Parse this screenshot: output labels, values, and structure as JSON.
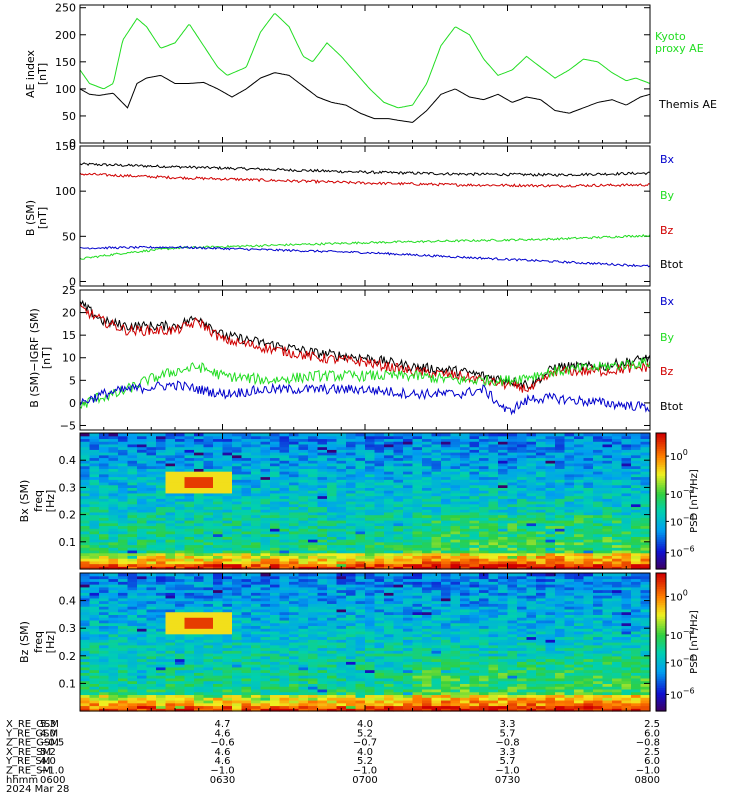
{
  "colors": {
    "black": "#000000",
    "red": "#d00000",
    "green": "#22dd22",
    "blue": "#0000cc"
  },
  "chart_data": [
    {
      "type": "line",
      "panel": "ae",
      "ylabel": "AE index",
      "yunit": "[nT]",
      "ylim": [
        0,
        250
      ],
      "yticks": [
        "0",
        "50",
        "100",
        "150",
        "200",
        "250"
      ],
      "xlim_minutes_after_0600": [
        0,
        120
      ],
      "legend": [
        {
          "name": "Kyoto proxy AE",
          "lines": [
            "Kyoto",
            "proxy AE"
          ],
          "color": "#22dd22"
        },
        {
          "name": "Themis AE",
          "lines": [
            "Themis AE"
          ],
          "color": "#000000"
        }
      ],
      "series": [
        {
          "name": "Kyoto proxy AE",
          "color": "#22dd22",
          "x": [
            0,
            2,
            5,
            7,
            9,
            12,
            14,
            17,
            20,
            23,
            26,
            29,
            31,
            35,
            38,
            41,
            44,
            47,
            49,
            52,
            55,
            58,
            61,
            64,
            67,
            70,
            73,
            76,
            79,
            82,
            85,
            88,
            91,
            94,
            97,
            100,
            103,
            106,
            109,
            112,
            115,
            117,
            120
          ],
          "y": [
            135,
            110,
            100,
            110,
            190,
            230,
            215,
            175,
            185,
            220,
            180,
            140,
            125,
            140,
            205,
            240,
            215,
            160,
            150,
            185,
            160,
            130,
            100,
            75,
            65,
            70,
            110,
            180,
            215,
            200,
            155,
            125,
            135,
            160,
            140,
            120,
            135,
            155,
            150,
            130,
            115,
            120,
            110
          ]
        },
        {
          "name": "Themis AE",
          "color": "#000000",
          "x": [
            0,
            2,
            4,
            7,
            10,
            12,
            14,
            17,
            20,
            23,
            26,
            29,
            32,
            35,
            38,
            41,
            44,
            47,
            50,
            53,
            56,
            59,
            62,
            65,
            67,
            70,
            73,
            76,
            79,
            82,
            85,
            88,
            91,
            94,
            97,
            100,
            103,
            106,
            109,
            112,
            115,
            118,
            120
          ],
          "y": [
            100,
            90,
            88,
            92,
            65,
            110,
            120,
            125,
            110,
            110,
            112,
            100,
            85,
            100,
            120,
            130,
            125,
            105,
            85,
            75,
            70,
            55,
            45,
            45,
            42,
            38,
            60,
            90,
            100,
            85,
            80,
            90,
            75,
            85,
            80,
            60,
            55,
            65,
            75,
            80,
            70,
            85,
            90
          ]
        }
      ]
    },
    {
      "type": "line",
      "panel": "b_sm",
      "ylabel": "B (SM)",
      "yunit": "[nT]",
      "ylim": [
        0,
        150
      ],
      "yticks": [
        "0",
        "50",
        "100",
        "150"
      ],
      "legend": [
        {
          "name": "Bx",
          "color": "#0000cc"
        },
        {
          "name": "By",
          "color": "#22dd22"
        },
        {
          "name": "Bz",
          "color": "#d00000"
        },
        {
          "name": "Btot",
          "color": "#000000"
        }
      ],
      "series": [
        {
          "name": "Btot",
          "color": "#000000",
          "x": [
            0,
            20,
            40,
            60,
            80,
            100,
            120
          ],
          "y": [
            130,
            127,
            124,
            121,
            119,
            118,
            120
          ],
          "noise": 1.5
        },
        {
          "name": "Bz",
          "color": "#d00000",
          "x": [
            0,
            20,
            40,
            60,
            80,
            100,
            120
          ],
          "y": [
            119,
            115,
            112,
            109,
            107,
            106,
            107
          ],
          "noise": 1.5
        },
        {
          "name": "By",
          "color": "#22dd22",
          "x": [
            0,
            10,
            20,
            40,
            60,
            80,
            100,
            120
          ],
          "y": [
            25,
            32,
            37,
            40,
            43,
            45,
            47,
            51
          ],
          "noise": 1.2
        },
        {
          "name": "Bx",
          "color": "#0000cc",
          "x": [
            0,
            20,
            40,
            60,
            80,
            100,
            120
          ],
          "y": [
            37,
            38,
            35,
            32,
            27,
            22,
            17
          ],
          "noise": 1.2
        }
      ]
    },
    {
      "type": "line",
      "panel": "b_minus_igrf",
      "ylabel": "B (SM)−IGRF (SM)",
      "yunit": "[nT]",
      "ylim": [
        -5,
        25
      ],
      "yticks": [
        "−5",
        "0",
        "5",
        "10",
        "15",
        "20",
        "25"
      ],
      "legend": [
        {
          "name": "Bx",
          "color": "#0000cc"
        },
        {
          "name": "By",
          "color": "#22dd22"
        },
        {
          "name": "Bz",
          "color": "#d00000"
        },
        {
          "name": "Btot",
          "color": "#000000"
        }
      ],
      "series": [
        {
          "name": "Btot",
          "color": "#000000",
          "x": [
            0,
            5,
            10,
            20,
            25,
            30,
            40,
            50,
            60,
            70,
            80,
            90,
            95,
            100,
            110,
            120
          ],
          "y": [
            22,
            18,
            17,
            17,
            19,
            15,
            13,
            11,
            10,
            8,
            7,
            5,
            4,
            8,
            8,
            10
          ],
          "noise": 1.1
        },
        {
          "name": "Bz",
          "color": "#d00000",
          "x": [
            0,
            5,
            10,
            20,
            25,
            30,
            40,
            50,
            60,
            70,
            80,
            90,
            95,
            100,
            110,
            120
          ],
          "y": [
            21,
            18,
            16,
            16,
            18,
            14,
            12,
            10,
            9,
            7,
            6,
            4,
            3,
            7,
            7,
            8
          ],
          "noise": 1.1
        },
        {
          "name": "By",
          "color": "#22dd22",
          "x": [
            0,
            3,
            8,
            14,
            20,
            25,
            30,
            40,
            50,
            60,
            70,
            80,
            90,
            95,
            100,
            110,
            120
          ],
          "y": [
            -1,
            1,
            2,
            5,
            7,
            8,
            6,
            5,
            6,
            6,
            6,
            5,
            5,
            6,
            7,
            8,
            9
          ],
          "noise": 1.2
        },
        {
          "name": "Bx",
          "color": "#0000cc",
          "x": [
            0,
            5,
            10,
            20,
            25,
            30,
            40,
            50,
            60,
            70,
            80,
            85,
            90,
            95,
            100,
            110,
            120
          ],
          "y": [
            0,
            2,
            3,
            4,
            3,
            2,
            3,
            3,
            3,
            2,
            2,
            3,
            -2,
            1,
            1,
            0,
            -1
          ],
          "noise": 1.1
        }
      ]
    },
    {
      "type": "heatmap",
      "panel": "bx_psd",
      "ylabel": "Bx (SM)",
      "ylabel2": "freq",
      "yunit": "[Hz]",
      "ylim": [
        0,
        0.5
      ],
      "yticks": [
        "0.1",
        "0.2",
        "0.3",
        "0.4"
      ],
      "colorbar_label": "PSD [nT²/Hz]",
      "colorbar_ticks": [
        {
          "base": "10",
          "exp": "0"
        },
        {
          "base": "10",
          "exp": "−2"
        },
        {
          "base": "10",
          "exp": "−4"
        },
        {
          "base": "10",
          "exp": "−6"
        }
      ],
      "hot_spot": {
        "t_minutes": 25,
        "freq_hz": 0.32
      }
    },
    {
      "type": "heatmap",
      "panel": "bz_psd",
      "ylabel": "Bz (SM)",
      "ylabel2": "freq",
      "yunit": "[Hz]",
      "ylim": [
        0,
        0.5
      ],
      "yticks": [
        "0.1",
        "0.2",
        "0.3",
        "0.4"
      ],
      "colorbar_label": "PSD [nT²/Hz]",
      "colorbar_ticks": [
        {
          "base": "10",
          "exp": "0"
        },
        {
          "base": "10",
          "exp": "−2"
        },
        {
          "base": "10",
          "exp": "−4"
        },
        {
          "base": "10",
          "exp": "−6"
        }
      ],
      "hot_spot": {
        "t_minutes": 25,
        "freq_hz": 0.32
      }
    }
  ],
  "ephemeris": {
    "rows": [
      {
        "label": "X_RE_GSM",
        "values": [
          "5.3",
          "4.7",
          "4.0",
          "3.3",
          "2.5"
        ]
      },
      {
        "label": "Y_RE_GSM",
        "values": [
          "4.0",
          "4.6",
          "5.2",
          "5.7",
          "6.0"
        ]
      },
      {
        "label": "Z_RE_GSM",
        "values": [
          "−0.5",
          "−0.6",
          "−0.7",
          "−0.8",
          "−0.8"
        ]
      },
      {
        "label": "X_RE_SM",
        "values": [
          "5.2",
          "4.6",
          "4.0",
          "3.3",
          "2.5"
        ]
      },
      {
        "label": "Y_RE_SM",
        "values": [
          "4.0",
          "4.6",
          "5.2",
          "5.7",
          "6.0"
        ]
      },
      {
        "label": "Z_RE_SM",
        "values": [
          "−1.0",
          "−1.0",
          "−1.0",
          "−1.0",
          "−1.0"
        ]
      },
      {
        "label": "hhmm",
        "values": [
          "0600",
          "0630",
          "0700",
          "0730",
          "0800"
        ]
      }
    ],
    "date": "2024 Mar 28"
  }
}
